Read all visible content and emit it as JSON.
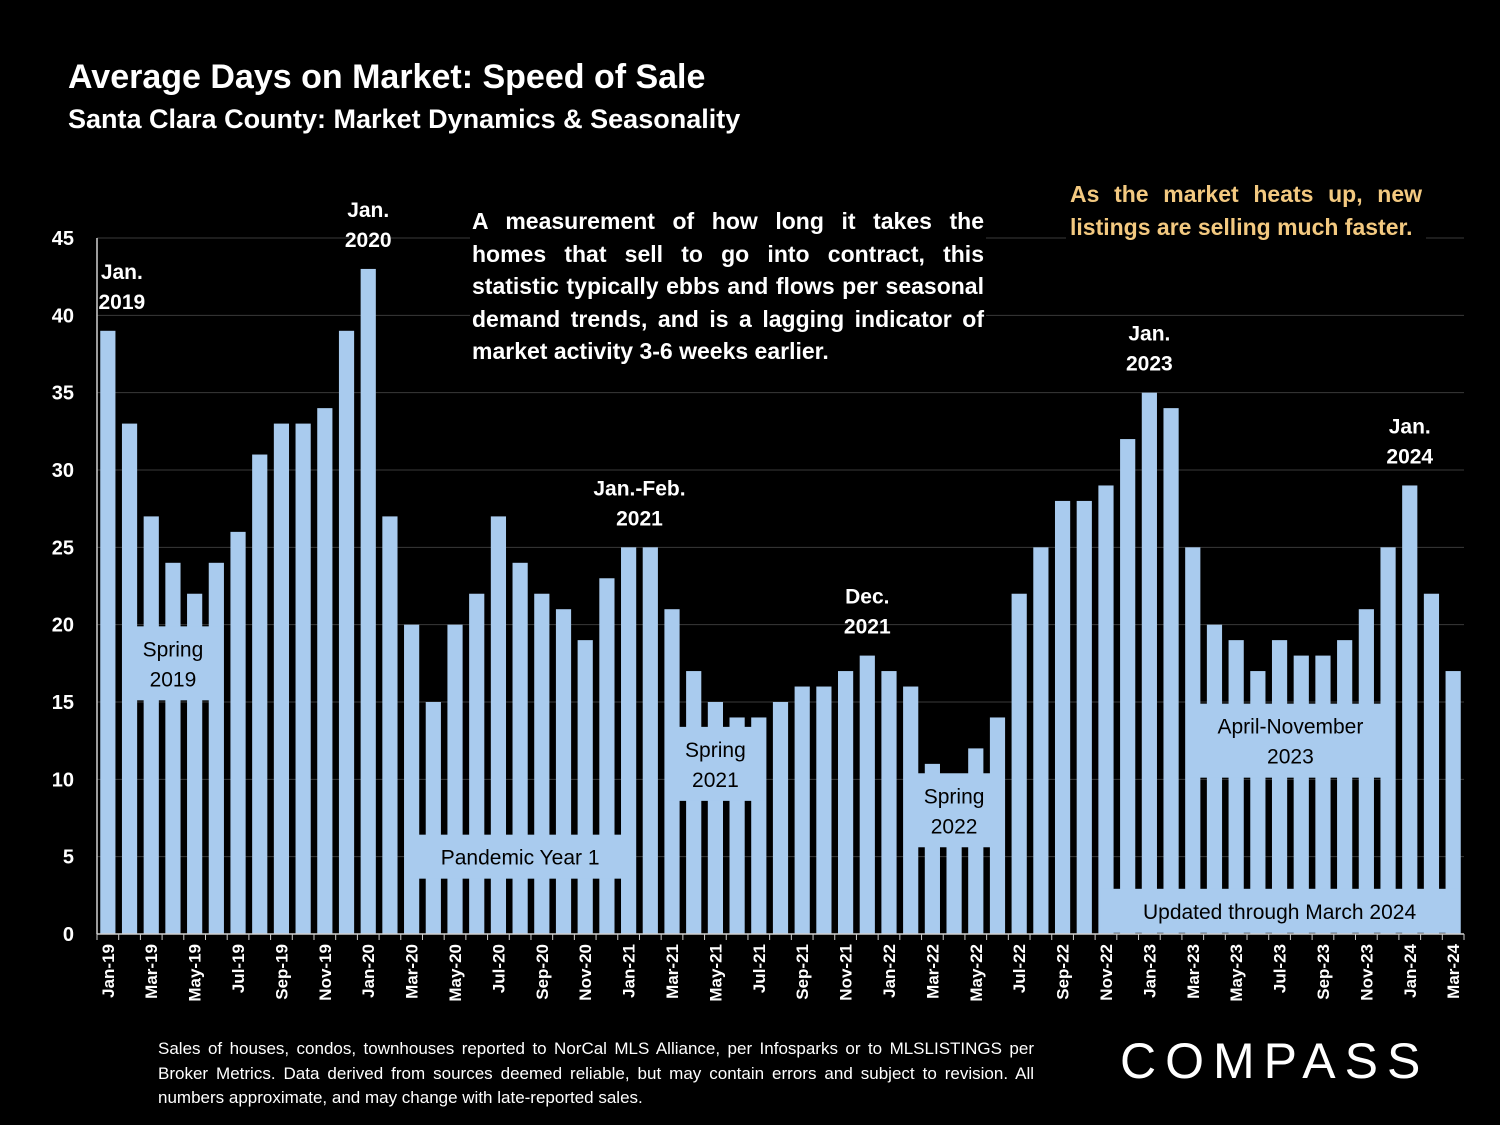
{
  "title": "Average Days on Market: Speed of Sale",
  "subtitle": "Santa Clara County: Market Dynamics & Seasonality",
  "description": "A measurement of how long it takes the homes that sell to go into contract, this statistic typically ebbs and flows per seasonal demand trends, and is a lagging indicator of market activity 3-6 weeks earlier.",
  "callout": "As the market heats up, new listings are selling much faster.",
  "footnote": "Sales of houses, condos, townhouses reported to NorCal MLS Alliance, per Infosparks or to MLSLISTINGS per Broker Metrics. Data derived from sources deemed reliable, but may contain errors and subject to revision. All numbers approximate, and may change with late-reported sales.",
  "logo": "COMPASS",
  "colors": {
    "bar": "#a9cbee",
    "background": "#000000",
    "callout": "#f3c980",
    "gridline": "#3a3a3a"
  },
  "chart_data": {
    "type": "bar",
    "title": "Average Days on Market: Speed of Sale",
    "xlabel": "",
    "ylabel": "",
    "ylim": [
      0,
      45
    ],
    "yticks": [
      0,
      5,
      10,
      15,
      20,
      25,
      30,
      35,
      40,
      45
    ],
    "grid": true,
    "categories": [
      "Jan-19",
      "Feb-19",
      "Mar-19",
      "Apr-19",
      "May-19",
      "Jun-19",
      "Jul-19",
      "Aug-19",
      "Sep-19",
      "Oct-19",
      "Nov-19",
      "Dec-19",
      "Jan-20",
      "Feb-20",
      "Mar-20",
      "Apr-20",
      "May-20",
      "Jun-20",
      "Jul-20",
      "Aug-20",
      "Sep-20",
      "Oct-20",
      "Nov-20",
      "Dec-20",
      "Jan-21",
      "Feb-21",
      "Mar-21",
      "Apr-21",
      "May-21",
      "Jun-21",
      "Jul-21",
      "Aug-21",
      "Sep-21",
      "Oct-21",
      "Nov-21",
      "Dec-21",
      "Jan-22",
      "Feb-22",
      "Mar-22",
      "Apr-22",
      "May-22",
      "Jun-22",
      "Jul-22",
      "Aug-22",
      "Sep-22",
      "Oct-22",
      "Nov-22",
      "Dec-22",
      "Jan-23",
      "Feb-23",
      "Mar-23",
      "Apr-23",
      "May-23",
      "Jun-23",
      "Jul-23",
      "Aug-23",
      "Sep-23",
      "Oct-23",
      "Nov-23",
      "Dec-23",
      "Jan-24",
      "Feb-24",
      "Mar-24"
    ],
    "tick_labels": [
      "Jan-19",
      "Mar-19",
      "May-19",
      "Jul-19",
      "Sep-19",
      "Nov-19",
      "Jan-20",
      "Mar-20",
      "May-20",
      "Jul-20",
      "Sep-20",
      "Nov-20",
      "Jan-21",
      "Mar-21",
      "May-21",
      "Jul-21",
      "Sep-21",
      "Nov-21",
      "Jan-22",
      "Mar-22",
      "May-22",
      "Jul-22",
      "Sep-22",
      "Nov-22",
      "Jan-23",
      "Mar-23",
      "May-23",
      "Jul-23",
      "Sep-23",
      "Nov-23",
      "Jan-24",
      "Mar-24"
    ],
    "values": [
      39,
      33,
      27,
      24,
      22,
      24,
      26,
      31,
      33,
      33,
      34,
      39,
      43,
      27,
      20,
      15,
      20,
      22,
      27,
      24,
      22,
      21,
      19,
      23,
      25,
      25,
      21,
      17,
      15,
      14,
      14,
      15,
      16,
      16,
      17,
      18,
      17,
      16,
      11,
      10,
      12,
      14,
      22,
      25,
      28,
      28,
      29,
      32,
      35,
      34,
      25,
      20,
      19,
      17,
      19,
      18,
      18,
      19,
      21,
      25,
      29,
      22,
      17
    ],
    "peak_labels": [
      {
        "index": 0,
        "line1": "Jan.",
        "line2": "2019"
      },
      {
        "index": 12,
        "line1": "Jan.",
        "line2": "2020"
      },
      {
        "index": 24.5,
        "line1": "Jan.-Feb.",
        "line2": "2021"
      },
      {
        "index": 35,
        "line1": "Dec.",
        "line2": "2021"
      },
      {
        "index": 48,
        "line1": "Jan.",
        "line2": "2023"
      },
      {
        "index": 60,
        "line1": "Jan.",
        "line2": "2024"
      }
    ],
    "annotations": [
      {
        "lines": [
          "Spring",
          "2019"
        ],
        "from": 1,
        "to": 5,
        "y": 17.5
      },
      {
        "lines": [
          "Pandemic Year 1"
        ],
        "from": 14,
        "to": 24,
        "y": 5
      },
      {
        "lines": [
          "Spring",
          "2021"
        ],
        "from": 26,
        "to": 30,
        "y": 11
      },
      {
        "lines": [
          "Spring",
          "2022"
        ],
        "from": 37,
        "to": 41,
        "y": 8
      },
      {
        "lines": [
          "April-November",
          "2023"
        ],
        "from": 50,
        "to": 59,
        "y": 12.5
      },
      {
        "lines": [
          "Updated through March 2024"
        ],
        "from": 46,
        "to": 62,
        "y": 1.5
      }
    ]
  }
}
